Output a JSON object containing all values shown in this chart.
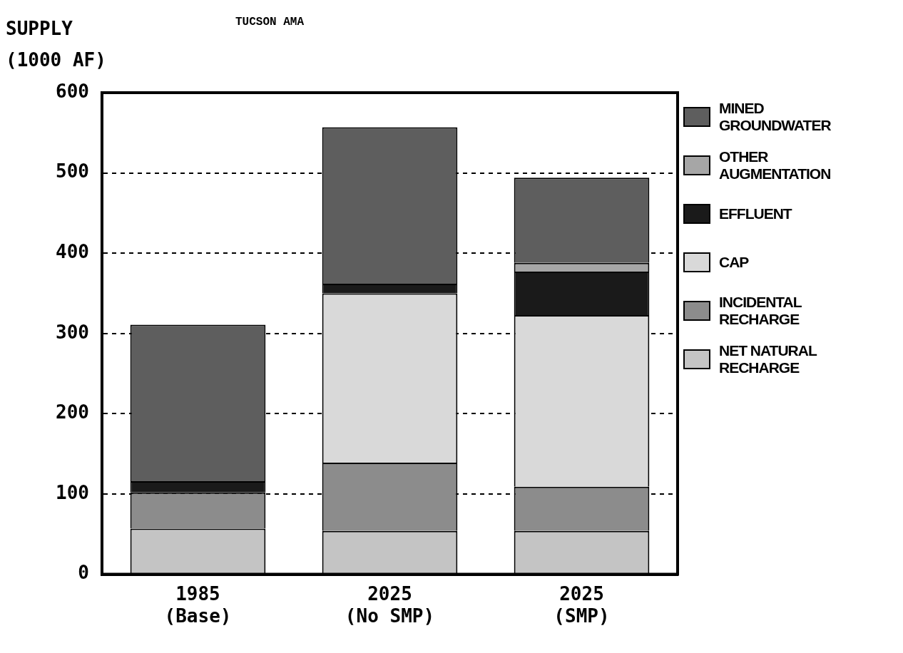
{
  "chart_data": {
    "type": "bar",
    "title": "TUCSON AMA",
    "ylabel": "SUPPLY (1000 AF)",
    "categories": [
      "1985 (Base)",
      "2025 (No SMP)",
      "2025 (SMP)"
    ],
    "stacked": true,
    "ylim": [
      0,
      600
    ],
    "yticks": [
      0,
      100,
      200,
      300,
      400,
      500,
      600
    ],
    "grid": "y",
    "legend": "right",
    "series": [
      {
        "name": "NET NATURAL RECHARGE",
        "color": "#c4c4c4",
        "values": [
          57,
          54,
          54
        ]
      },
      {
        "name": "INCIDENTAL RECHARGE",
        "color": "#8c8c8c",
        "values": [
          45,
          85,
          55
        ]
      },
      {
        "name": "CAP",
        "color": "#d9d9d9",
        "values": [
          0,
          211,
          214
        ]
      },
      {
        "name": "EFFLUENT",
        "color": "#1a1a1a",
        "values": [
          14,
          12,
          54
        ]
      },
      {
        "name": "OTHER AUGMENTATION",
        "color": "#a6a6a6",
        "values": [
          0,
          0,
          11
        ]
      },
      {
        "name": "MINED GROUNDWATER",
        "color": "#5e5e5e",
        "values": [
          195,
          195,
          106
        ]
      }
    ]
  }
}
